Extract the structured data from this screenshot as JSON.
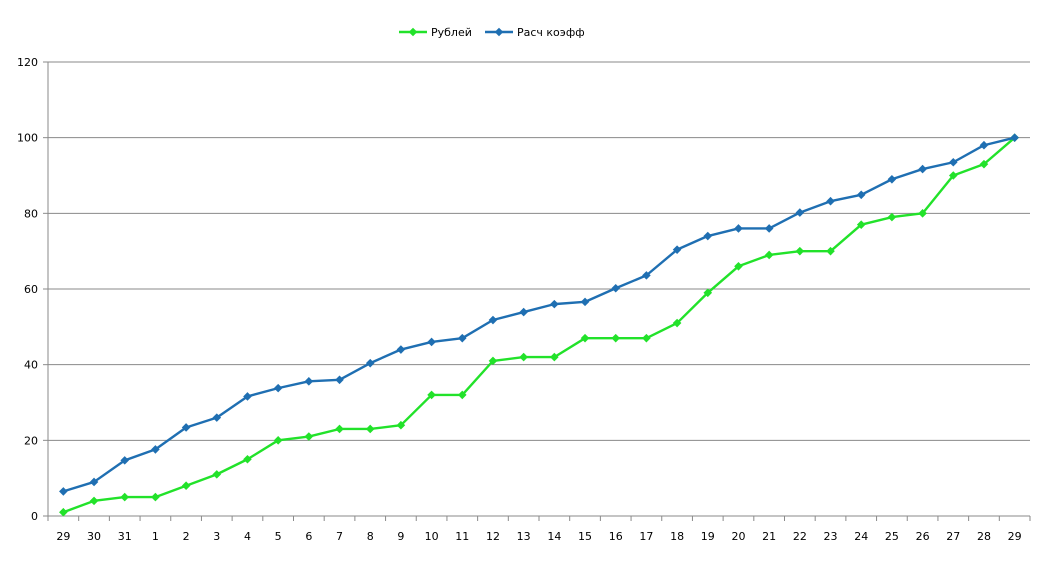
{
  "chart_data": {
    "type": "line",
    "title": "",
    "xlabel": "",
    "ylabel": "",
    "categories": [
      "29",
      "30",
      "31",
      "1",
      "2",
      "3",
      "4",
      "5",
      "6",
      "7",
      "8",
      "9",
      "10",
      "11",
      "12",
      "13",
      "14",
      "15",
      "16",
      "17",
      "18",
      "19",
      "20",
      "21",
      "22",
      "23",
      "24",
      "25",
      "26",
      "27",
      "28",
      "29"
    ],
    "ylim": [
      0,
      120
    ],
    "yticks": [
      0,
      20,
      40,
      60,
      80,
      100,
      120
    ],
    "grid": true,
    "legend_position": "top-center",
    "series": [
      {
        "name": "Рублей",
        "color": "#22E22A",
        "marker": "diamond",
        "values": [
          1,
          4,
          5,
          5,
          8,
          11,
          15,
          20,
          21,
          23,
          23,
          24,
          32,
          32,
          41,
          42,
          42,
          47,
          47,
          47,
          51,
          59,
          66,
          69,
          70,
          70,
          77,
          79,
          80,
          90,
          93,
          100
        ]
      },
      {
        "name": "Расч коэфф",
        "color": "#1F6FB2",
        "marker": "diamond",
        "values": [
          6.5,
          9,
          14.7,
          17.6,
          23.4,
          26,
          31.6,
          33.8,
          35.6,
          36,
          40.4,
          44,
          46,
          47,
          51.8,
          53.9,
          56,
          56.6,
          60.2,
          63.6,
          70.4,
          74,
          76,
          76,
          80.2,
          83.2,
          84.9,
          89,
          91.7,
          93.5,
          98,
          100
        ]
      }
    ]
  }
}
